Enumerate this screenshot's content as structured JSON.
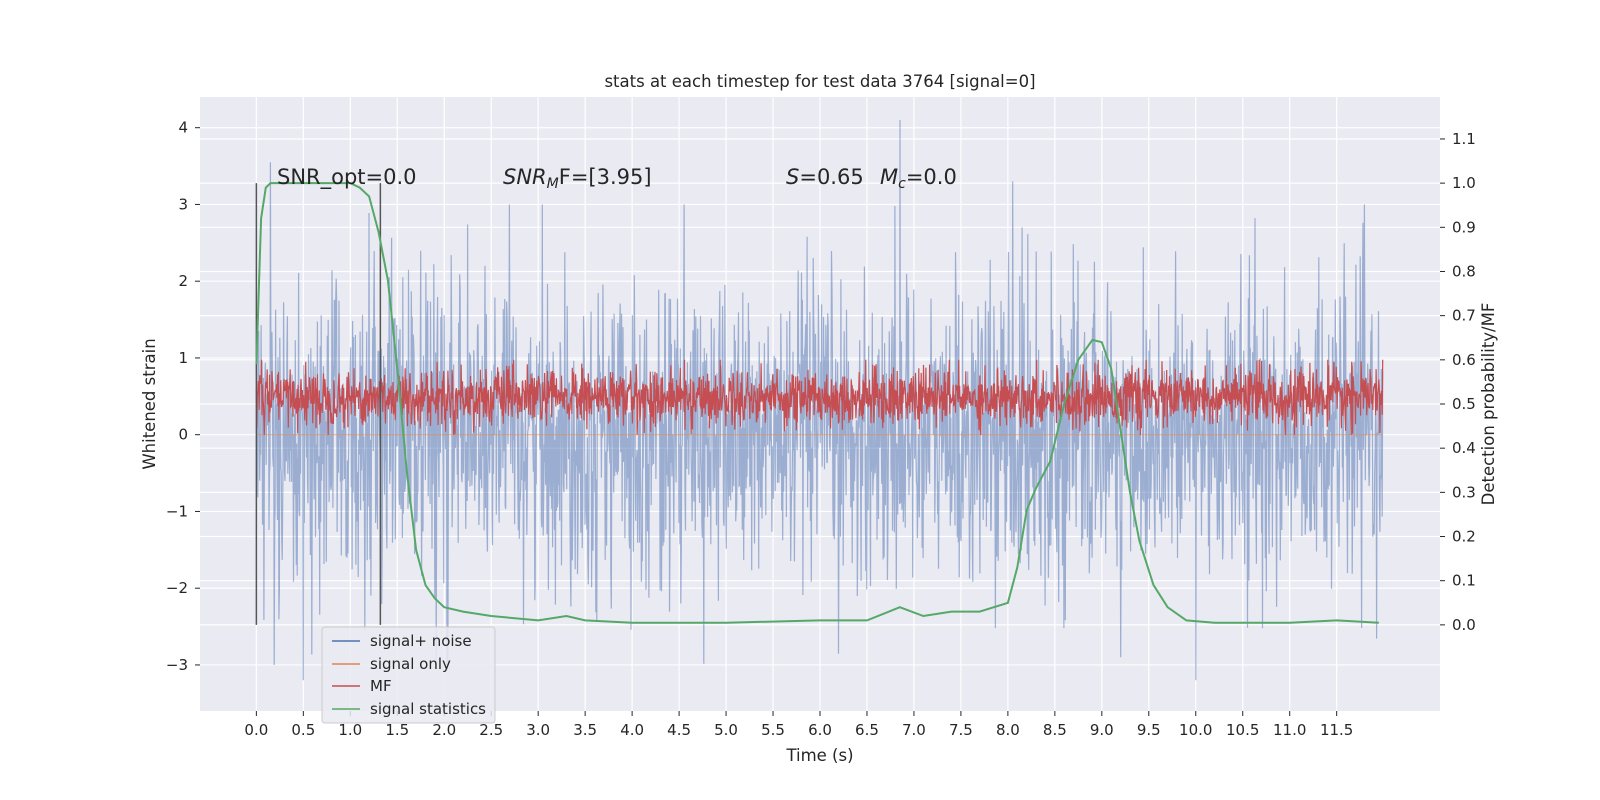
{
  "chart_data": {
    "type": "line",
    "title": "stats at each timestep for test data 3764 [signal=0]",
    "xlabel": "Time (s)",
    "ylabel_left": "Whitened strain",
    "ylabel_right": "Detection probability/MF",
    "xlim": [
      -0.6,
      12.6
    ],
    "ylim_left": [
      -3.6,
      4.4
    ],
    "ylim_right": [
      -0.195,
      1.195
    ],
    "x_ticks": [
      "0.0",
      "0.5",
      "1.0",
      "1.5",
      "2.0",
      "2.5",
      "3.0",
      "3.5",
      "4.0",
      "4.5",
      "5.0",
      "5.5",
      "6.0",
      "6.5",
      "7.0",
      "7.5",
      "8.0",
      "8.5",
      "9.0",
      "9.5",
      "10.0",
      "10.5",
      "11.0",
      "11.5"
    ],
    "y_ticks_left": [
      "−3",
      "−2",
      "−1",
      "0",
      "1",
      "2",
      "3",
      "4"
    ],
    "y_ticks_right": [
      "0.0",
      "0.1",
      "0.2",
      "0.3",
      "0.4",
      "0.5",
      "0.6",
      "0.7",
      "0.8",
      "0.9",
      "1.0",
      "1.1"
    ],
    "grid": true,
    "legend_position": "lower-left",
    "annotations": {
      "snr_opt": "SNR_opt=0.0",
      "snr_mf_main": "SNR",
      "snr_mf_sub": "M",
      "snr_mf_rest": "F=[3.95]",
      "s_label": "S",
      "s_value": "=0.65",
      "mc_label": "M",
      "mc_sub": "c",
      "mc_value": "=0.0"
    },
    "vlines": [
      0.0,
      1.32
    ],
    "series": [
      {
        "name": "signal+ noise",
        "color": "#4c72b0",
        "axis": "left",
        "note": "dense Gaussian noise trace, roughly within -3.2..4.1",
        "x_range": [
          0.0,
          11.99
        ],
        "envelope_extremes": [
          {
            "x": 0.15,
            "y": 3.55
          },
          {
            "x": 0.5,
            "y": -3.2
          },
          {
            "x": 6.85,
            "y": 4.1
          },
          {
            "x": 8.05,
            "y": 3.3
          },
          {
            "x": 9.2,
            "y": -2.9
          },
          {
            "x": 10.0,
            "y": -3.2
          }
        ]
      },
      {
        "name": "signal only",
        "color": "#dd8452",
        "axis": "left",
        "values": "zero everywhere"
      },
      {
        "name": "MF",
        "color": "#c44e52",
        "axis": "right",
        "note": "matched-filter output fluctuating between ~0.43 and ~0.6, mean ~0.5",
        "x_range": [
          0.0,
          11.99
        ],
        "range": [
          0.43,
          0.6
        ]
      },
      {
        "name": "signal statistics",
        "color": "#55a868",
        "axis": "right",
        "x": [
          0.0,
          0.05,
          0.1,
          0.15,
          0.25,
          0.5,
          0.8,
          1.0,
          1.1,
          1.2,
          1.3,
          1.4,
          1.5,
          1.6,
          1.7,
          1.8,
          1.9,
          2.0,
          2.2,
          2.5,
          3.0,
          3.3,
          3.5,
          4.0,
          5.0,
          6.0,
          6.5,
          6.85,
          7.1,
          7.4,
          7.7,
          8.0,
          8.1,
          8.2,
          8.3,
          8.45,
          8.6,
          8.75,
          8.9,
          9.0,
          9.1,
          9.2,
          9.3,
          9.4,
          9.55,
          9.7,
          9.9,
          10.2,
          11.0,
          11.5,
          11.95
        ],
        "y": [
          0.59,
          0.92,
          0.99,
          1.0,
          1.0,
          1.0,
          1.0,
          1.0,
          0.99,
          0.97,
          0.89,
          0.78,
          0.58,
          0.35,
          0.17,
          0.09,
          0.06,
          0.04,
          0.03,
          0.02,
          0.01,
          0.02,
          0.01,
          0.005,
          0.005,
          0.01,
          0.01,
          0.04,
          0.02,
          0.03,
          0.03,
          0.05,
          0.13,
          0.26,
          0.31,
          0.37,
          0.5,
          0.6,
          0.645,
          0.64,
          0.58,
          0.44,
          0.3,
          0.19,
          0.09,
          0.04,
          0.01,
          0.005,
          0.005,
          0.01,
          0.005
        ]
      }
    ]
  }
}
